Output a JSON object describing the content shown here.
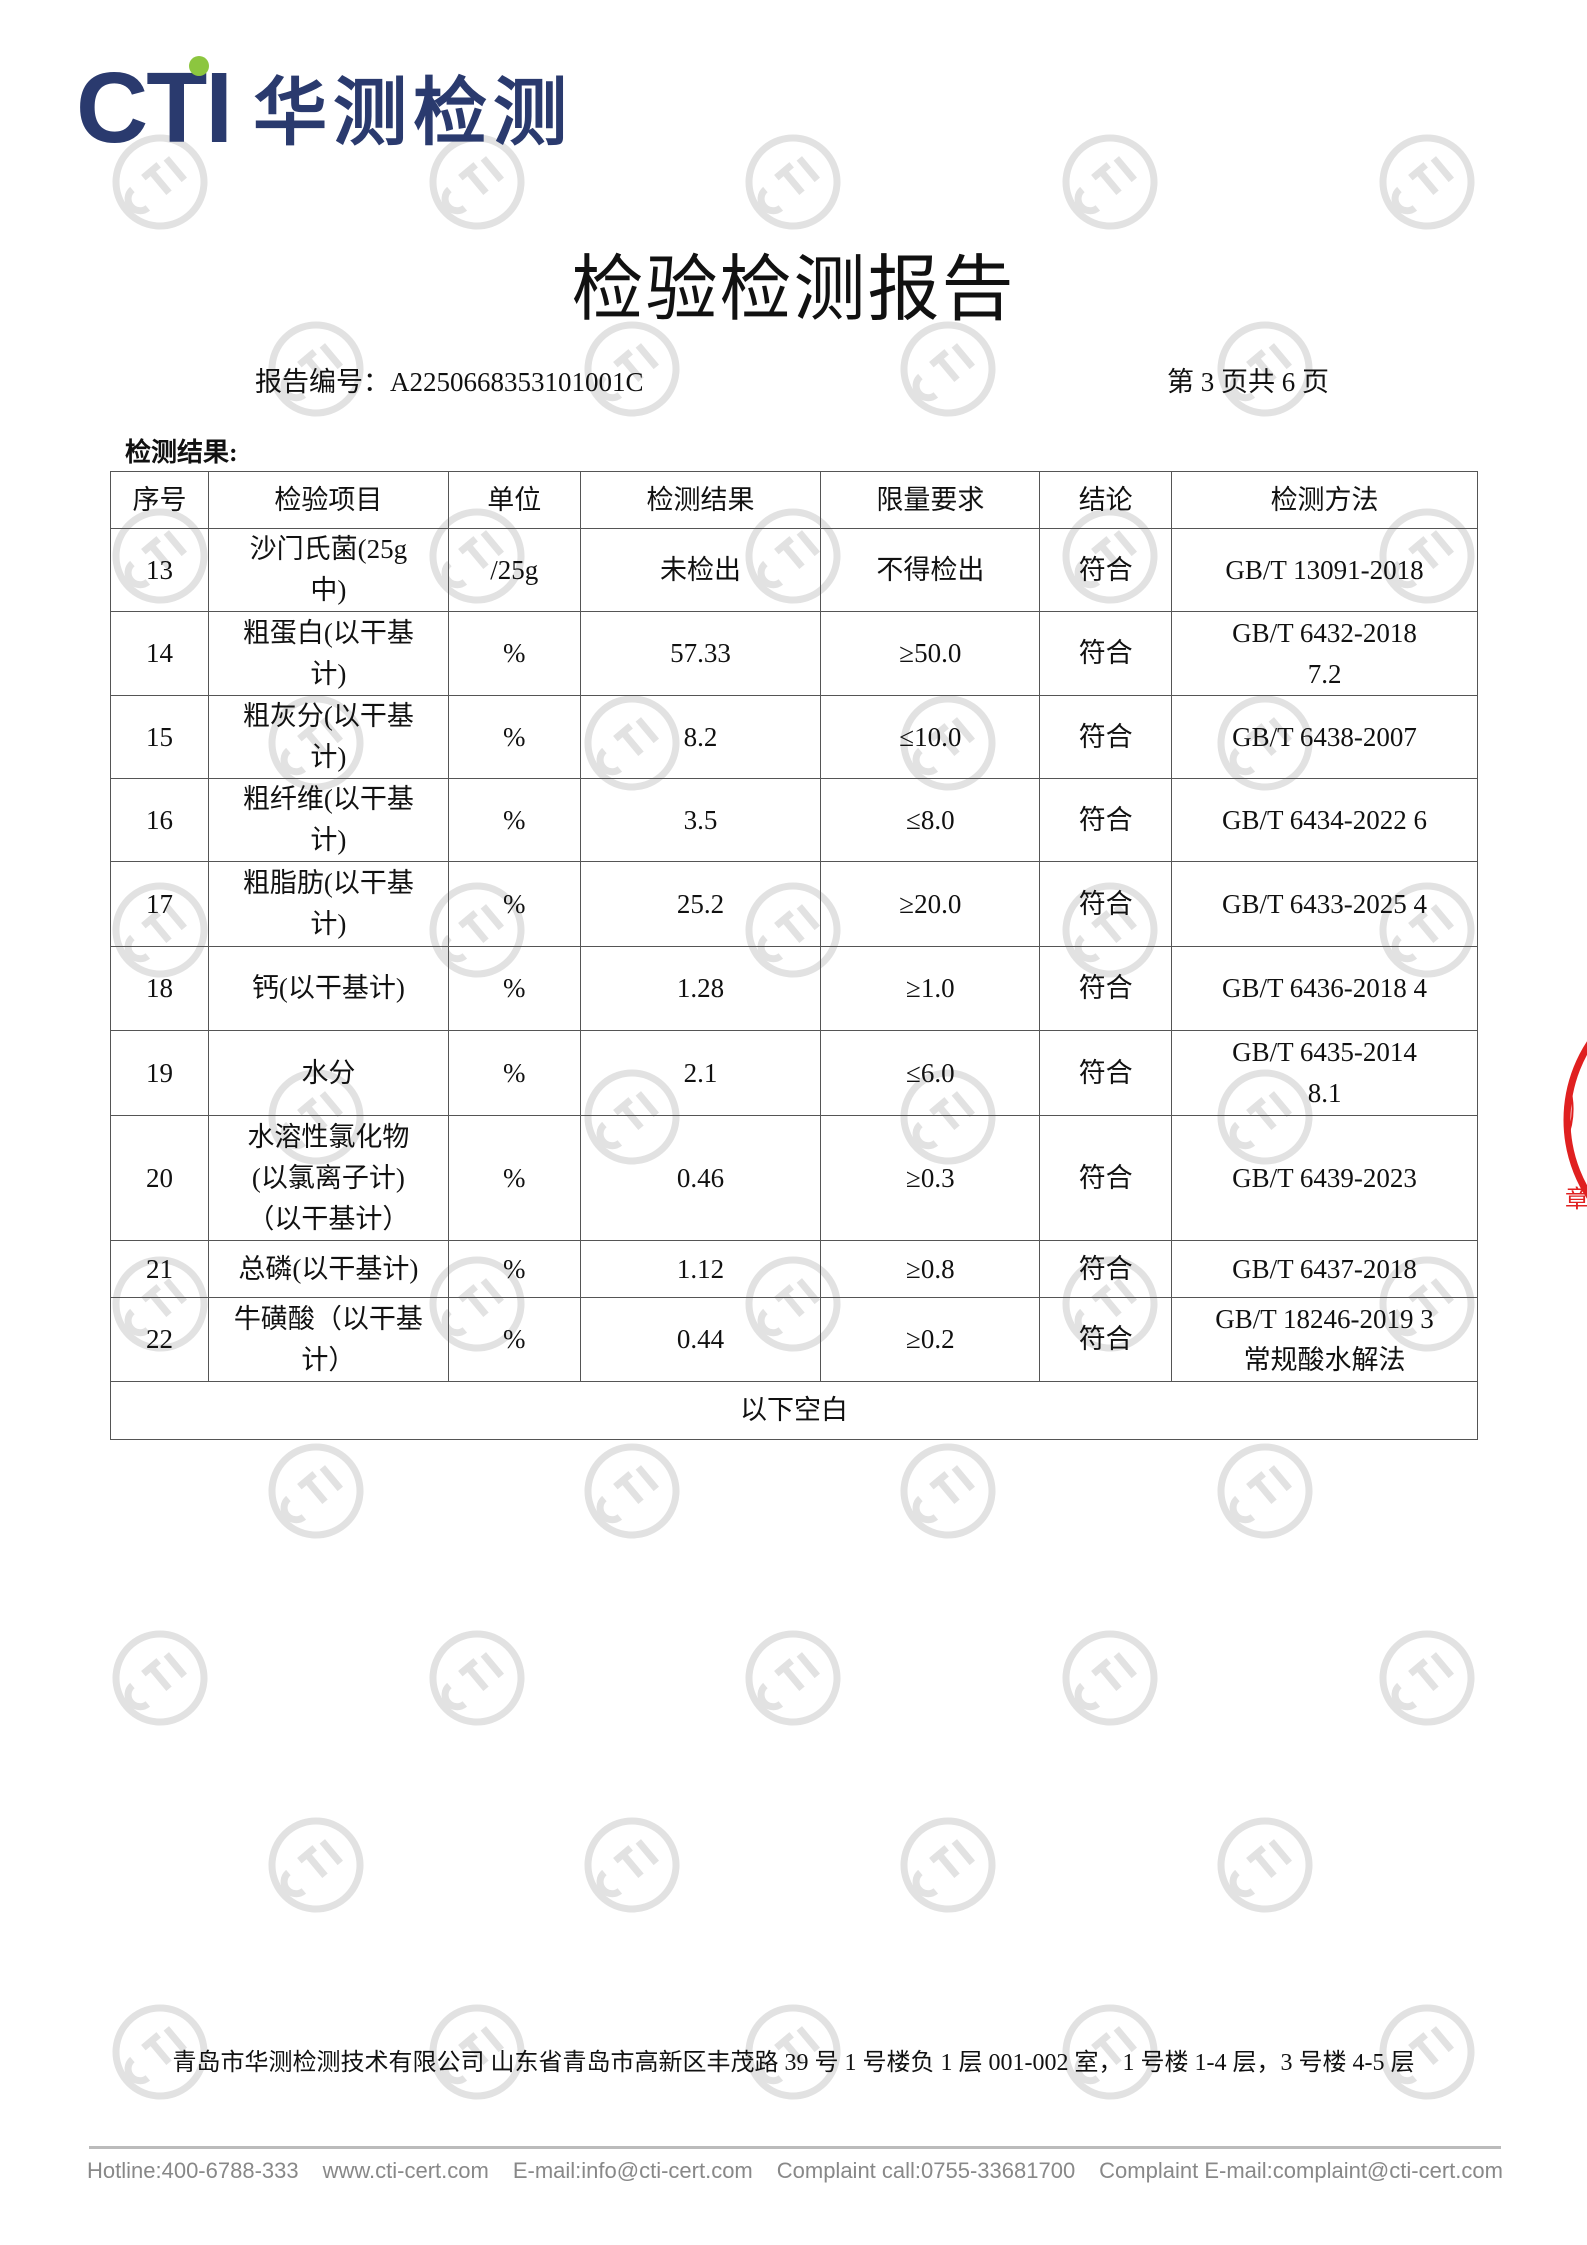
{
  "logo": {
    "brand": "CTI",
    "name_cn": "华测检测",
    "brand_color": "#2a3a6e",
    "dot_color": "#8cc63f"
  },
  "title": "检验检测报告",
  "report_number_label": "报告编号：A2250668353101001C",
  "page_info": "第 3 页共 6 页",
  "section_title": "检测结果:",
  "table": {
    "headers": [
      "序号",
      "检验项目",
      "单位",
      "检测结果",
      "限量要求",
      "结论",
      "检测方法"
    ],
    "rows": [
      {
        "no": "13",
        "item": "沙门氏菌(25g 中)",
        "unit": "/25g",
        "result": "未检出",
        "limit": "不得检出",
        "conclusion": "符合",
        "method": "GB/T 13091-2018"
      },
      {
        "no": "14",
        "item": "粗蛋白(以干基计)",
        "unit": "%",
        "result": "57.33",
        "limit": "≥50.0",
        "conclusion": "符合",
        "method": "GB/T 6432-2018 7.2"
      },
      {
        "no": "15",
        "item": "粗灰分(以干基计)",
        "unit": "%",
        "result": "8.2",
        "limit": "≤10.0",
        "conclusion": "符合",
        "method": "GB/T 6438-2007"
      },
      {
        "no": "16",
        "item": "粗纤维(以干基计)",
        "unit": "%",
        "result": "3.5",
        "limit": "≤8.0",
        "conclusion": "符合",
        "method": "GB/T 6434-2022 6"
      },
      {
        "no": "17",
        "item": "粗脂肪(以干基计)",
        "unit": "%",
        "result": "25.2",
        "limit": "≥20.0",
        "conclusion": "符合",
        "method": "GB/T 6433-2025 4"
      },
      {
        "no": "18",
        "item": "钙(以干基计)",
        "unit": "%",
        "result": "1.28",
        "limit": "≥1.0",
        "conclusion": "符合",
        "method": "GB/T 6436-2018 4"
      },
      {
        "no": "19",
        "item": "水分",
        "unit": "%",
        "result": "2.1",
        "limit": "≤6.0",
        "conclusion": "符合",
        "method": "GB/T 6435-2014 8.1"
      },
      {
        "no": "20",
        "item": "水溶性氯化物(以氯离子计)（以干基计）",
        "unit": "%",
        "result": "0.46",
        "limit": "≥0.3",
        "conclusion": "符合",
        "method": "GB/T 6439-2023"
      },
      {
        "no": "21",
        "item": "总磷(以干基计)",
        "unit": "%",
        "result": "1.12",
        "limit": "≥0.8",
        "conclusion": "符合",
        "method": "GB/T 6437-2018"
      },
      {
        "no": "22",
        "item": "牛磺酸（以干基计）",
        "unit": "%",
        "result": "0.44",
        "limit": "≥0.2",
        "conclusion": "符合",
        "method": "GB/T 18246-2019 3 常规酸水解法"
      }
    ],
    "blank_note": "以下空白"
  },
  "footer": {
    "address": "青岛市华测检测技术有限公司 山东省青岛市高新区丰茂路 39 号 1 号楼负 1 层 001-002 室，1 号楼 1-4 层，3 号楼 4-5 层",
    "contacts": [
      "Hotline:400-6788-333",
      "www.cti-cert.com",
      "E-mail:info@cti-cert.com",
      "Complaint call:0755-33681700",
      "Complaint E-mail:complaint@cti-cert.com"
    ]
  },
  "watermark": {
    "text": "CTI",
    "color": "#e2e2e2"
  },
  "seal": {
    "text": "章",
    "color": "#e02020"
  }
}
